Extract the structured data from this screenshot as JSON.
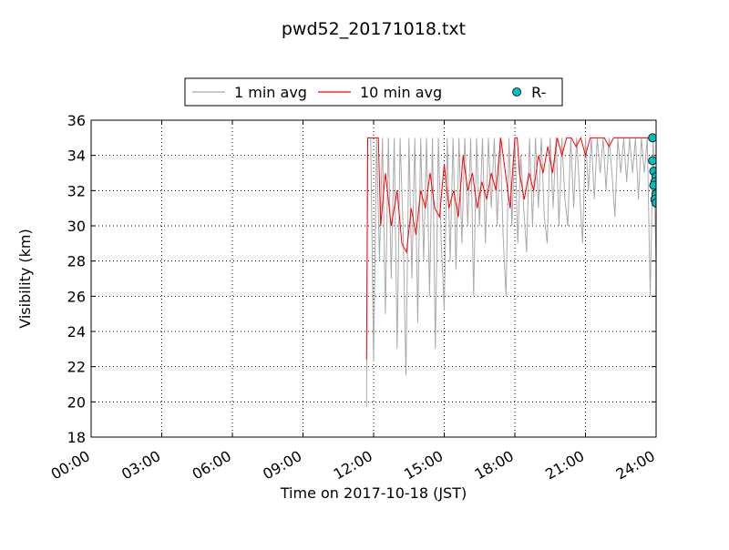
{
  "chart_data": {
    "type": "line",
    "title": "pwd52_20171018.txt",
    "x_label": "Time on 2017-10-18 (JST)",
    "y_label": "Visibility (km)",
    "xlim": [
      0,
      24
    ],
    "ylim": [
      18,
      36
    ],
    "xticks": [
      {
        "value": 0,
        "label": "00:00"
      },
      {
        "value": 3,
        "label": "03:00"
      },
      {
        "value": 6,
        "label": "06:00"
      },
      {
        "value": 9,
        "label": "09:00"
      },
      {
        "value": 12,
        "label": "12:00"
      },
      {
        "value": 15,
        "label": "15:00"
      },
      {
        "value": 18,
        "label": "18:00"
      },
      {
        "value": 21,
        "label": "21:00"
      },
      {
        "value": 24,
        "label": "24:00"
      }
    ],
    "yticks": [
      18,
      20,
      22,
      24,
      26,
      28,
      30,
      32,
      34,
      36
    ],
    "grid": true,
    "legend": "upper center",
    "series": [
      {
        "name": "1 min avg",
        "kind": "line",
        "color": "#aaaaaa",
        "x": [
          11.7,
          11.75,
          11.875,
          12,
          12.125,
          12.25,
          12.375,
          12.5,
          12.625,
          12.75,
          12.875,
          13,
          13.125,
          13.25,
          13.375,
          13.5,
          13.625,
          13.75,
          13.875,
          14,
          14.125,
          14.25,
          14.375,
          14.5,
          14.625,
          14.75,
          14.875,
          15,
          15.125,
          15.25,
          15.375,
          15.5,
          15.625,
          15.75,
          15.875,
          16,
          16.125,
          16.25,
          16.375,
          16.5,
          16.625,
          16.75,
          16.875,
          17,
          17.125,
          17.25,
          17.375,
          17.5,
          17.625,
          17.75,
          17.875,
          18,
          18.125,
          18.25,
          18.375,
          18.5,
          18.625,
          18.75,
          18.875,
          19,
          19.125,
          19.25,
          19.375,
          19.5,
          19.625,
          19.75,
          19.875,
          20,
          20.125,
          20.25,
          20.375,
          20.5,
          20.625,
          20.75,
          20.875,
          21,
          21.125,
          21.25,
          21.375,
          21.5,
          21.625,
          21.75,
          21.875,
          22,
          22.125,
          22.25,
          22.375,
          22.5,
          22.625,
          22.75,
          22.875,
          23,
          23.125,
          23.25,
          23.375,
          23.5,
          23.625,
          23.75,
          23.875,
          24
        ],
        "values": [
          19.7,
          35,
          35,
          22.3,
          35,
          28,
          35,
          25,
          35,
          27,
          35,
          23,
          35,
          30,
          21.5,
          35,
          27,
          35,
          24.5,
          35,
          28,
          35,
          26,
          35,
          23,
          35,
          29,
          25.2,
          35,
          28,
          35,
          27.5,
          35,
          29,
          35,
          30,
          35,
          26,
          35,
          30,
          35,
          29,
          35,
          31,
          35,
          30,
          35,
          29.5,
          26,
          35,
          30,
          35,
          29,
          34,
          31,
          28.5,
          35,
          30,
          35,
          31,
          35,
          30.5,
          29,
          35,
          31,
          35,
          30,
          35,
          31.5,
          30,
          35,
          31,
          35,
          32,
          29,
          35,
          32,
          35,
          31.5,
          35,
          33,
          35,
          32,
          35,
          33,
          30.5,
          35,
          33,
          35,
          32.5,
          35,
          33,
          35,
          31.5,
          35,
          33,
          35,
          26,
          35,
          28
        ]
      },
      {
        "name": "10 min avg",
        "kind": "line",
        "color": "#ff0000",
        "x": [
          11.7,
          11.75,
          12.2,
          12.3,
          12.5,
          12.75,
          13,
          13.2,
          13.4,
          13.6,
          13.8,
          14,
          14.2,
          14.4,
          14.6,
          14.8,
          15,
          15.2,
          15.4,
          15.6,
          15.8,
          16,
          16.2,
          16.4,
          16.6,
          16.8,
          17,
          17.2,
          17.4,
          17.6,
          17.8,
          18,
          18.1,
          18.2,
          18.4,
          18.6,
          18.8,
          19,
          19.2,
          19.4,
          19.6,
          19.8,
          20,
          20.2,
          20.4,
          20.6,
          20.8,
          21,
          21.2,
          21.4,
          21.6,
          21.8,
          22,
          22.2,
          24
        ],
        "values": [
          22.4,
          35,
          35,
          30,
          33,
          30,
          32,
          29,
          28.5,
          31,
          29.5,
          32,
          31,
          33,
          31,
          30.5,
          33.5,
          31,
          32,
          30.5,
          34,
          32,
          33,
          31,
          32.5,
          31.5,
          33,
          32,
          35,
          33,
          31,
          35,
          35,
          33,
          31.5,
          33,
          32,
          34,
          33,
          34.5,
          33,
          35,
          34,
          35,
          35,
          34.5,
          35,
          34,
          35,
          35,
          35,
          35,
          34.5,
          35,
          35
        ]
      },
      {
        "name": "R-",
        "kind": "scatter",
        "color": "#00bfbf",
        "x": [
          23.85,
          23.85,
          23.9,
          24,
          23.95,
          23.9,
          24,
          23.95,
          24
        ],
        "values": [
          35,
          33.7,
          33.1,
          32.8,
          32.5,
          32.3,
          31.8,
          31.5,
          31.3
        ]
      }
    ]
  }
}
